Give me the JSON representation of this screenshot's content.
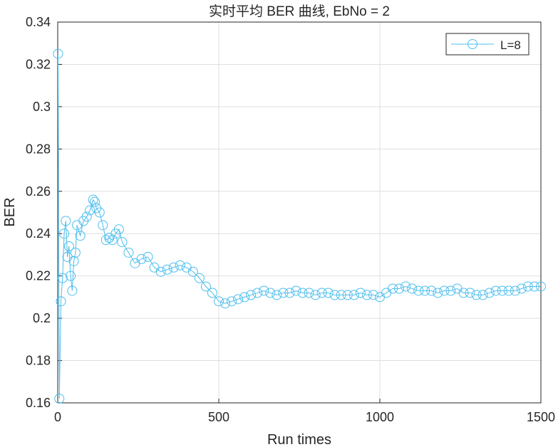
{
  "chart_data": {
    "type": "line",
    "title": "实时平均 BER 曲线, EbNo = 2",
    "xlabel": "Run times",
    "ylabel": "BER",
    "xlim": [
      0,
      1500
    ],
    "ylim": [
      0.16,
      0.34
    ],
    "xticks": [
      0,
      500,
      1000,
      1500
    ],
    "xtick_labels": [
      "0",
      "500",
      "1000",
      "1500"
    ],
    "yticks": [
      0.16,
      0.18,
      0.2,
      0.22,
      0.24,
      0.26,
      0.28,
      0.3,
      0.32,
      0.34
    ],
    "ytick_labels": [
      "0.16",
      "0.18",
      "0.2",
      "0.22",
      "0.24",
      "0.26",
      "0.28",
      "0.3",
      "0.32",
      "0.34"
    ],
    "grid": true,
    "legend_position": "top-right",
    "marker": "circle",
    "series": [
      {
        "name": "L=8",
        "color": "#4DBEEE",
        "x": [
          1,
          5,
          10,
          15,
          20,
          25,
          30,
          35,
          40,
          45,
          50,
          55,
          60,
          70,
          80,
          90,
          100,
          110,
          115,
          120,
          130,
          140,
          150,
          160,
          170,
          180,
          190,
          200,
          220,
          240,
          260,
          280,
          300,
          320,
          340,
          360,
          380,
          400,
          420,
          440,
          460,
          480,
          500,
          520,
          540,
          560,
          580,
          600,
          620,
          640,
          660,
          680,
          700,
          720,
          740,
          760,
          780,
          800,
          820,
          840,
          860,
          880,
          900,
          920,
          940,
          960,
          980,
          1000,
          1020,
          1040,
          1060,
          1080,
          1100,
          1120,
          1140,
          1160,
          1180,
          1200,
          1220,
          1240,
          1260,
          1280,
          1300,
          1320,
          1340,
          1360,
          1380,
          1400,
          1420,
          1440,
          1460,
          1480,
          1500
        ],
        "y": [
          0.325,
          0.162,
          0.208,
          0.219,
          0.24,
          0.246,
          0.229,
          0.234,
          0.22,
          0.213,
          0.227,
          0.231,
          0.244,
          0.239,
          0.246,
          0.248,
          0.251,
          0.256,
          0.255,
          0.252,
          0.25,
          0.244,
          0.237,
          0.238,
          0.237,
          0.24,
          0.242,
          0.236,
          0.231,
          0.226,
          0.228,
          0.229,
          0.224,
          0.222,
          0.223,
          0.224,
          0.225,
          0.224,
          0.222,
          0.219,
          0.215,
          0.212,
          0.208,
          0.207,
          0.208,
          0.209,
          0.21,
          0.211,
          0.212,
          0.213,
          0.212,
          0.211,
          0.212,
          0.212,
          0.213,
          0.212,
          0.212,
          0.211,
          0.212,
          0.212,
          0.211,
          0.211,
          0.211,
          0.211,
          0.212,
          0.211,
          0.211,
          0.21,
          0.212,
          0.214,
          0.214,
          0.215,
          0.214,
          0.213,
          0.213,
          0.213,
          0.212,
          0.213,
          0.213,
          0.214,
          0.212,
          0.212,
          0.211,
          0.211,
          0.212,
          0.213,
          0.213,
          0.213,
          0.213,
          0.214,
          0.215,
          0.215,
          0.215
        ]
      }
    ]
  }
}
